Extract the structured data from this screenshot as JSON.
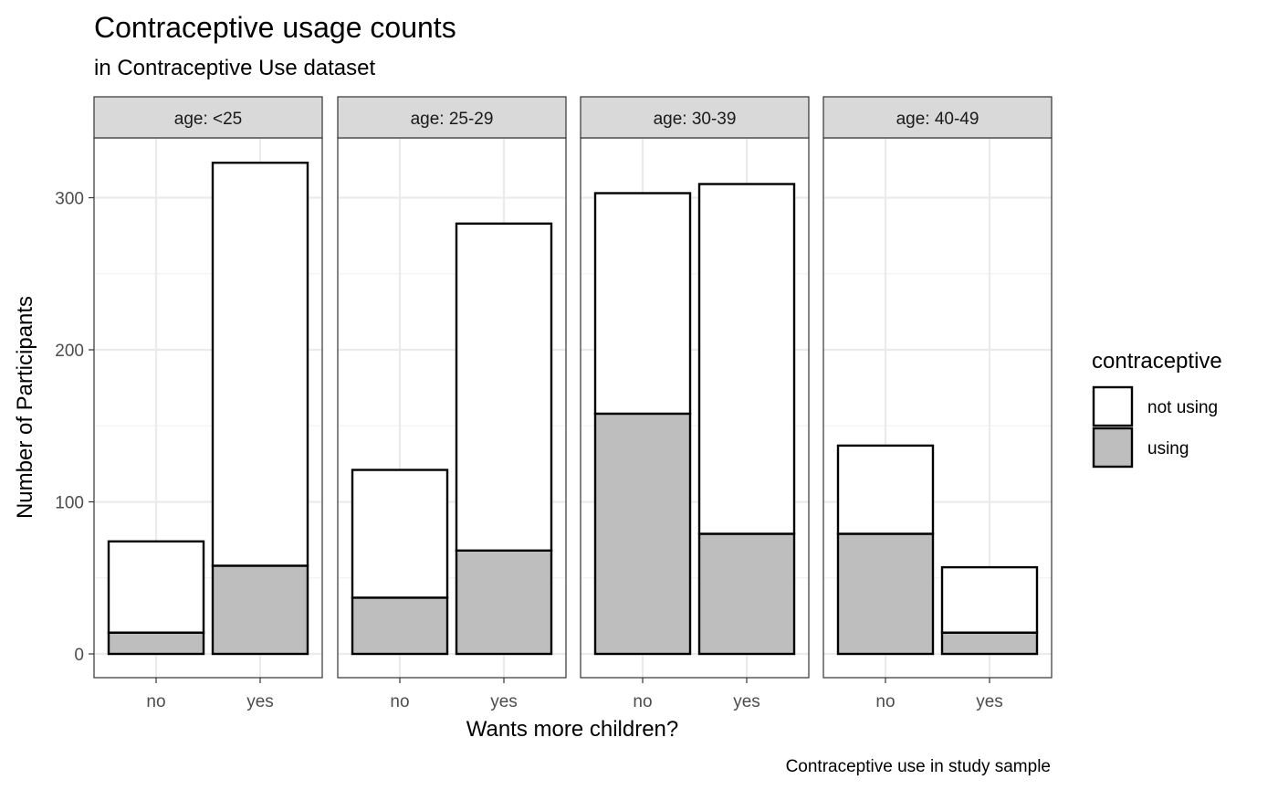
{
  "chart_data": {
    "type": "bar",
    "stacked": true,
    "title": "Contraceptive usage counts",
    "subtitle": "in Contraceptive Use dataset",
    "xlabel": "Wants more children?",
    "ylabel": "Number of Participants",
    "caption": "Contraceptive use in study sample",
    "ylim": [
      0,
      340
    ],
    "yticks": [
      0,
      100,
      200,
      300
    ],
    "grid": true,
    "categories": [
      "no",
      "yes"
    ],
    "facet_prefix": "age: ",
    "legend": {
      "title": "contraceptive",
      "position": "right",
      "entries": [
        {
          "label": "not using",
          "color": "#ffffff"
        },
        {
          "label": "using",
          "color": "#bebebe"
        }
      ]
    },
    "facets": [
      {
        "label": "<25",
        "series": [
          {
            "name": "using",
            "values": [
              14,
              58
            ]
          },
          {
            "name": "not using",
            "values": [
              60,
              265
            ]
          }
        ]
      },
      {
        "label": "25-29",
        "series": [
          {
            "name": "using",
            "values": [
              37,
              68
            ]
          },
          {
            "name": "not using",
            "values": [
              84,
              215
            ]
          }
        ]
      },
      {
        "label": "30-39",
        "series": [
          {
            "name": "using",
            "values": [
              158,
              79
            ]
          },
          {
            "name": "not using",
            "values": [
              145,
              230
            ]
          }
        ]
      },
      {
        "label": "40-49",
        "series": [
          {
            "name": "using",
            "values": [
              79,
              14
            ]
          },
          {
            "name": "not using",
            "values": [
              58,
              43
            ]
          }
        ]
      }
    ]
  }
}
